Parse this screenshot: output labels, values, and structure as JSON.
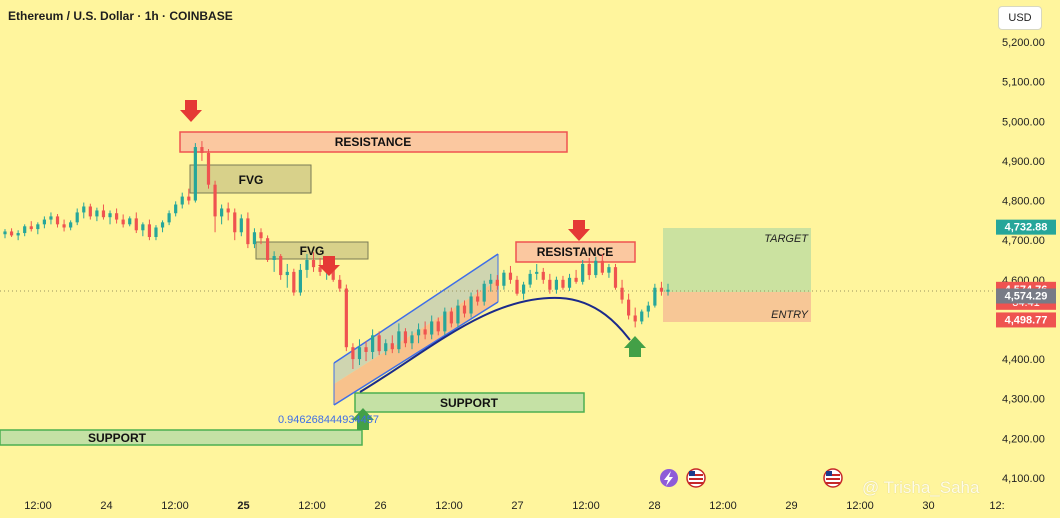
{
  "header": {
    "title": "Ethereum / U.S. Dollar · 1h · COINBASE",
    "currency_button": "USD"
  },
  "watermark": "@ Trisha_Saha",
  "colors": {
    "background": "#FFF59D",
    "up_candle": "#26a69a",
    "down_candle": "#ef5350",
    "channel": "#3f6ee8",
    "curve": "#1b2a8a",
    "arrow_down": "#e53935",
    "arrow_up": "#43a047"
  },
  "price_badges": [
    {
      "value": "4,732.88",
      "bg": "#26a69a"
    },
    {
      "value": "4,574.76",
      "bg": "#ef5350",
      "sub": "34:41"
    },
    {
      "value": "4,574.29",
      "bg": "#787b86"
    },
    {
      "value": "4,498.77",
      "bg": "#ef5350"
    }
  ],
  "annotations": {
    "resistance_1": "RESISTANCE",
    "resistance_2": "RESISTANCE",
    "fvg_1": "FVG",
    "fvg_2": "FVG",
    "support_1": "SUPPORT",
    "support_2": "SUPPORT",
    "target": "TARGET",
    "entry": "ENTRY",
    "fib_value": "0.946268444934457"
  },
  "icons": [
    "lightning-icon",
    "us-flag-icon",
    "us-flag-icon"
  ],
  "chart_data": {
    "type": "candlestick",
    "title": "Ethereum / U.S. Dollar · 1h · COINBASE",
    "ylim": [
      4080,
      5270
    ],
    "y_ticks": [
      4100,
      4200,
      4300,
      4400,
      4500,
      4600,
      4700,
      4800,
      4900,
      5000,
      5100,
      5200
    ],
    "y_tick_labels": [
      "4,100.00",
      "4,200.00",
      "4,300.00",
      "4,400.00",
      "4,500.00",
      "4,600.00",
      "4,700.00",
      "4,800.00",
      "4,900.00",
      "5,000.00",
      "5,100.00",
      "5,200.00"
    ],
    "x_tick_labels": [
      "12:00",
      "24",
      "12:00",
      "25",
      "12:00",
      "26",
      "12:00",
      "27",
      "12:00",
      "28",
      "12:00",
      "29",
      "12:00",
      "30",
      "12:"
    ],
    "bold_x_labels": [
      "25"
    ],
    "grid": false,
    "last_price": 4574.76,
    "countdown": "34:41",
    "levels": {
      "target": 4732.88,
      "entry": 4574.29,
      "stop": 4498.77
    },
    "zones": [
      {
        "label": "RESISTANCE",
        "top": 4970,
        "bottom": 4920
      },
      {
        "label": "FVG",
        "top": 4885,
        "bottom": 4815
      },
      {
        "label": "FVG",
        "top": 4695,
        "bottom": 4650
      },
      {
        "label": "RESISTANCE",
        "top": 4695,
        "bottom": 4645
      },
      {
        "label": "SUPPORT",
        "top": 4310,
        "bottom": 4265
      },
      {
        "label": "SUPPORT",
        "top": 4220,
        "bottom": 4180
      }
    ],
    "candles": [
      [
        4715,
        4728,
        4705,
        4722
      ],
      [
        4722,
        4730,
        4708,
        4712
      ],
      [
        4712,
        4725,
        4700,
        4718
      ],
      [
        4718,
        4740,
        4710,
        4735
      ],
      [
        4735,
        4748,
        4722,
        4728
      ],
      [
        4728,
        4745,
        4715,
        4740
      ],
      [
        4740,
        4760,
        4730,
        4752
      ],
      [
        4752,
        4770,
        4740,
        4760
      ],
      [
        4760,
        4766,
        4732,
        4740
      ],
      [
        4740,
        4752,
        4722,
        4732
      ],
      [
        4732,
        4750,
        4725,
        4745
      ],
      [
        4745,
        4780,
        4738,
        4770
      ],
      [
        4770,
        4795,
        4755,
        4785
      ],
      [
        4785,
        4792,
        4752,
        4760
      ],
      [
        4760,
        4782,
        4748,
        4775
      ],
      [
        4775,
        4790,
        4752,
        4758
      ],
      [
        4758,
        4775,
        4740,
        4768
      ],
      [
        4768,
        4780,
        4742,
        4752
      ],
      [
        4752,
        4765,
        4732,
        4740
      ],
      [
        4740,
        4760,
        4735,
        4755
      ],
      [
        4755,
        4770,
        4718,
        4725
      ],
      [
        4725,
        4745,
        4710,
        4740
      ],
      [
        4740,
        4752,
        4700,
        4708
      ],
      [
        4708,
        4738,
        4700,
        4732
      ],
      [
        4732,
        4750,
        4720,
        4745
      ],
      [
        4745,
        4775,
        4738,
        4768
      ],
      [
        4768,
        4798,
        4760,
        4790
      ],
      [
        4790,
        4820,
        4780,
        4810
      ],
      [
        4810,
        4830,
        4790,
        4800
      ],
      [
        4800,
        4945,
        4795,
        4935
      ],
      [
        4935,
        4950,
        4900,
        4920
      ],
      [
        4920,
        4930,
        4830,
        4840
      ],
      [
        4840,
        4850,
        4720,
        4760
      ],
      [
        4760,
        4790,
        4740,
        4780
      ],
      [
        4780,
        4795,
        4750,
        4770
      ],
      [
        4770,
        4780,
        4700,
        4720
      ],
      [
        4720,
        4765,
        4710,
        4755
      ],
      [
        4755,
        4770,
        4680,
        4690
      ],
      [
        4690,
        4730,
        4680,
        4720
      ],
      [
        4720,
        4730,
        4690,
        4705
      ],
      [
        4705,
        4712,
        4645,
        4650
      ],
      [
        4650,
        4672,
        4620,
        4660
      ],
      [
        4660,
        4665,
        4600,
        4612
      ],
      [
        4612,
        4640,
        4580,
        4620
      ],
      [
        4620,
        4628,
        4560,
        4568
      ],
      [
        4568,
        4640,
        4560,
        4625
      ],
      [
        4625,
        4665,
        4605,
        4650
      ],
      [
        4650,
        4670,
        4620,
        4632
      ],
      [
        4632,
        4655,
        4610,
        4620
      ],
      [
        4620,
        4660,
        4600,
        4645
      ],
      [
        4645,
        4652,
        4595,
        4600
      ],
      [
        4600,
        4612,
        4570,
        4578
      ],
      [
        4578,
        4588,
        4420,
        4430
      ],
      [
        4430,
        4440,
        4375,
        4400
      ],
      [
        4400,
        4450,
        4385,
        4430
      ],
      [
        4430,
        4445,
        4395,
        4418
      ],
      [
        4418,
        4475,
        4400,
        4460
      ],
      [
        4460,
        4470,
        4410,
        4420
      ],
      [
        4420,
        4450,
        4410,
        4440
      ],
      [
        4440,
        4460,
        4415,
        4425
      ],
      [
        4425,
        4490,
        4415,
        4470
      ],
      [
        4470,
        4478,
        4430,
        4440
      ],
      [
        4440,
        4470,
        4425,
        4460
      ],
      [
        4460,
        4490,
        4440,
        4475
      ],
      [
        4475,
        4495,
        4450,
        4462
      ],
      [
        4462,
        4510,
        4450,
        4495
      ],
      [
        4495,
        4505,
        4460,
        4470
      ],
      [
        4470,
        4530,
        4460,
        4520
      ],
      [
        4520,
        4530,
        4480,
        4490
      ],
      [
        4490,
        4550,
        4480,
        4535
      ],
      [
        4535,
        4548,
        4505,
        4515
      ],
      [
        4515,
        4568,
        4505,
        4558
      ],
      [
        4558,
        4575,
        4535,
        4545
      ],
      [
        4545,
        4598,
        4535,
        4590
      ],
      [
        4590,
        4615,
        4570,
        4600
      ],
      [
        4600,
        4612,
        4575,
        4585
      ],
      [
        4585,
        4625,
        4575,
        4618
      ],
      [
        4618,
        4635,
        4590,
        4600
      ],
      [
        4600,
        4610,
        4560,
        4565
      ],
      [
        4565,
        4595,
        4550,
        4588
      ],
      [
        4588,
        4625,
        4580,
        4615
      ],
      [
        4615,
        4640,
        4600,
        4620
      ],
      [
        4620,
        4630,
        4590,
        4600
      ],
      [
        4600,
        4615,
        4565,
        4575
      ],
      [
        4575,
        4608,
        4565,
        4600
      ],
      [
        4600,
        4610,
        4575,
        4580
      ],
      [
        4580,
        4615,
        4572,
        4605
      ],
      [
        4605,
        4625,
        4590,
        4595
      ],
      [
        4595,
        4650,
        4588,
        4640
      ],
      [
        4640,
        4655,
        4600,
        4612
      ],
      [
        4612,
        4658,
        4605,
        4648
      ],
      [
        4648,
        4665,
        4612,
        4618
      ],
      [
        4618,
        4640,
        4605,
        4632
      ],
      [
        4632,
        4640,
        4575,
        4580
      ],
      [
        4580,
        4600,
        4540,
        4550
      ],
      [
        4550,
        4565,
        4500,
        4510
      ],
      [
        4510,
        4530,
        4480,
        4495
      ],
      [
        4495,
        4525,
        4488,
        4520
      ],
      [
        4520,
        4545,
        4505,
        4535
      ],
      [
        4535,
        4590,
        4530,
        4580
      ],
      [
        4580,
        4595,
        4560,
        4570
      ],
      [
        4570,
        4590,
        4560,
        4575
      ]
    ]
  }
}
